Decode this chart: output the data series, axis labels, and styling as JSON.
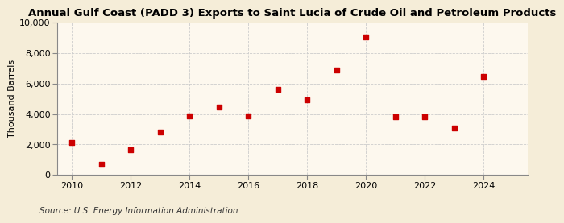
{
  "title": "Annual Gulf Coast (PADD 3) Exports to Saint Lucia of Crude Oil and Petroleum Products",
  "ylabel": "Thousand Barrels",
  "source": "Source: U.S. Energy Information Administration",
  "background_color": "#f5edd8",
  "plot_bg_color": "#fdf8ee",
  "years": [
    2010,
    2011,
    2012,
    2013,
    2014,
    2015,
    2016,
    2017,
    2018,
    2019,
    2020,
    2021,
    2022,
    2023,
    2024
  ],
  "values": [
    2100,
    700,
    1650,
    2800,
    3850,
    4450,
    3850,
    5600,
    4950,
    6900,
    9050,
    3800,
    3800,
    3050,
    6450
  ],
  "marker_color": "#cc0000",
  "ylim": [
    0,
    10000
  ],
  "yticks": [
    0,
    2000,
    4000,
    6000,
    8000,
    10000
  ],
  "xlim": [
    2009.5,
    2025.5
  ],
  "xticks": [
    2010,
    2012,
    2014,
    2016,
    2018,
    2020,
    2022,
    2024
  ],
  "grid_color": "#cccccc",
  "title_fontsize": 9.5,
  "label_fontsize": 8,
  "tick_fontsize": 8,
  "source_fontsize": 7.5
}
